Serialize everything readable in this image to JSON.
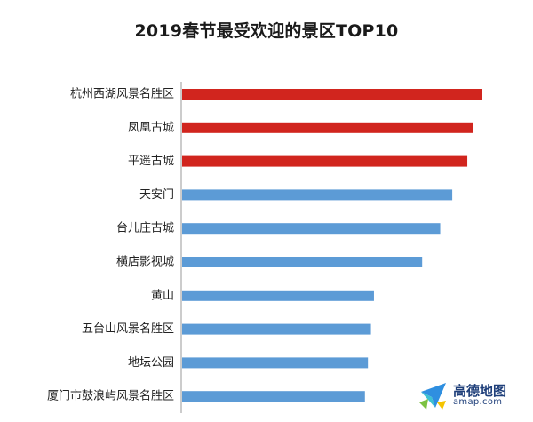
{
  "chart_data": {
    "type": "bar",
    "orientation": "horizontal",
    "title": "2019春节最受欢迎的景区TOP10",
    "categories": [
      "杭州西湖风景名胜区",
      "凤凰古城",
      "平遥古城",
      "天安门",
      "台儿庄古城",
      "横店影视城",
      "黄山",
      "五台山风景名胜区",
      "地坛公园",
      "厦门市鼓浪屿风景名胜区"
    ],
    "values": [
      100,
      97,
      95,
      90,
      86,
      80,
      64,
      63,
      62,
      61
    ],
    "xlim": [
      0,
      100
    ],
    "grid": false,
    "legend": "none",
    "top_color": "#d1251e",
    "other_color": "#5c9bd6",
    "highlight_count": 3
  },
  "logo": {
    "name": "高德地图",
    "url": "amap.com"
  }
}
